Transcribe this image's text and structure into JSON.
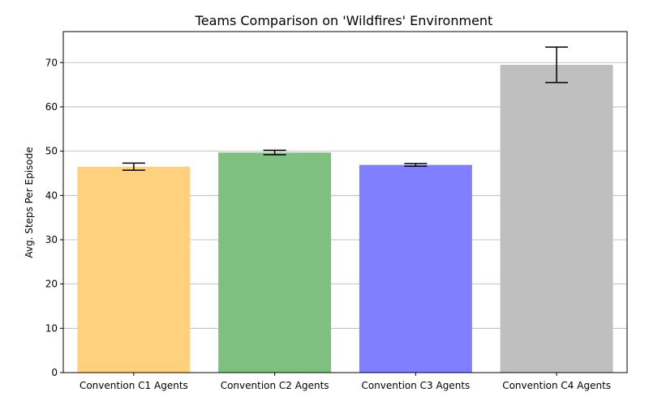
{
  "chart_data": {
    "type": "bar",
    "title": "Teams Comparison on 'Wildfires' Environment",
    "xlabel": "",
    "ylabel": "Avg. Steps Per Episode",
    "ylim": [
      0,
      77
    ],
    "yticks": [
      0,
      10,
      20,
      30,
      40,
      50,
      60,
      70
    ],
    "grid": "y",
    "categories": [
      "Convention C1 Agents",
      "Convention C2 Agents",
      "Convention C3 Agents",
      "Convention C4 Agents"
    ],
    "values": [
      46.5,
      49.7,
      46.9,
      69.5
    ],
    "errors": [
      0.8,
      0.5,
      0.3,
      4.0
    ],
    "colors": [
      "#FFD17F",
      "#7FBF7F",
      "#7F7FFF",
      "#BFBFBF"
    ]
  }
}
